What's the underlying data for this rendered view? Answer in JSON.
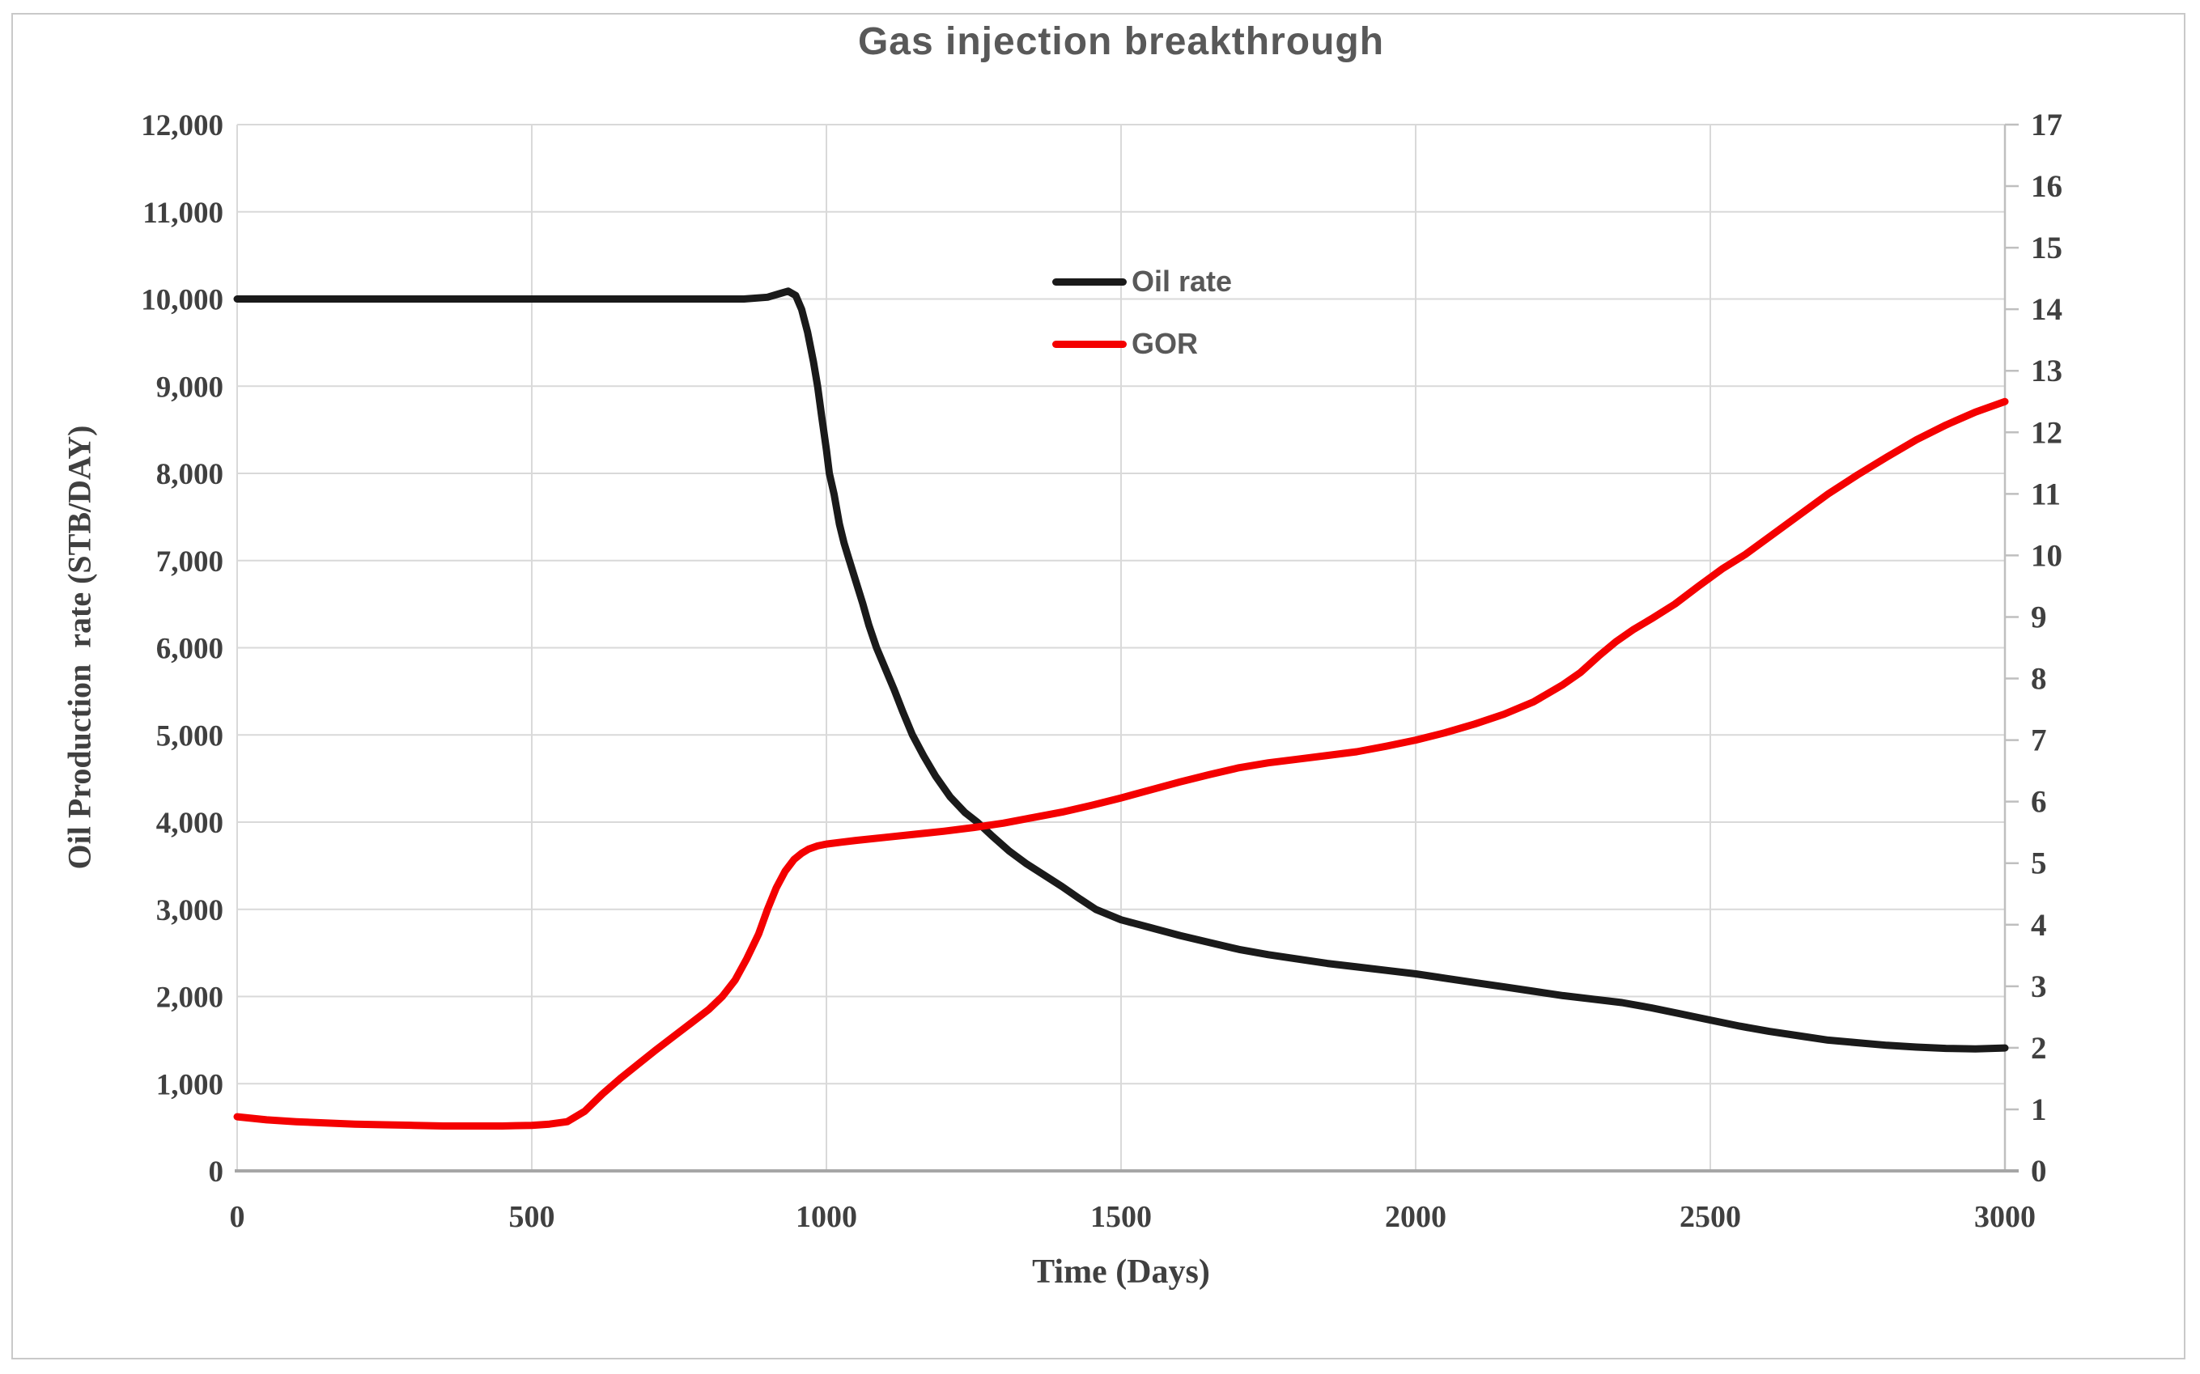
{
  "title": "Gas injection breakthrough",
  "legend": [
    {
      "label": "Oil rate",
      "color": "#1a1a1a"
    },
    {
      "label": "GOR",
      "color": "#f40000"
    }
  ],
  "colors": {
    "title_text": "#595959",
    "axis_text": "#404040",
    "gridline": "#d9d9d9",
    "axis_line": "#bfbfbf",
    "x_axis_line": "#a6a6a6",
    "figure_border": "#c9c9c9",
    "background": "#ffffff"
  },
  "chart_data": {
    "type": "line",
    "title": "Gas injection breakthrough",
    "xlabel": "Time (Days)",
    "ylabel_left": "Oil Production  rate (STB/DAY)",
    "ylabel_right": "",
    "xlim": [
      0,
      3000
    ],
    "x_ticks": [
      0,
      500,
      1000,
      1500,
      2000,
      2500,
      3000
    ],
    "left_axis": {
      "min": 0,
      "max": 12000,
      "step": 1000,
      "format": "comma"
    },
    "right_axis": {
      "min": 0,
      "max": 17,
      "step": 1
    },
    "grid": true,
    "legend_position": "inside-top-center",
    "series": [
      {
        "name": "Oil rate",
        "axis": "left",
        "color": "#1a1a1a",
        "points": [
          [
            0,
            10000
          ],
          [
            150,
            10000
          ],
          [
            300,
            10000
          ],
          [
            450,
            10000
          ],
          [
            600,
            10000
          ],
          [
            750,
            10000
          ],
          [
            860,
            10000
          ],
          [
            900,
            10020
          ],
          [
            920,
            10060
          ],
          [
            935,
            10090
          ],
          [
            948,
            10040
          ],
          [
            958,
            9880
          ],
          [
            968,
            9620
          ],
          [
            978,
            9280
          ],
          [
            985,
            9000
          ],
          [
            992,
            8650
          ],
          [
            1000,
            8270
          ],
          [
            1005,
            8000
          ],
          [
            1013,
            7760
          ],
          [
            1022,
            7420
          ],
          [
            1030,
            7200
          ],
          [
            1039,
            7000
          ],
          [
            1050,
            6760
          ],
          [
            1062,
            6500
          ],
          [
            1072,
            6260
          ],
          [
            1085,
            6000
          ],
          [
            1100,
            5760
          ],
          [
            1115,
            5520
          ],
          [
            1130,
            5260
          ],
          [
            1146,
            5000
          ],
          [
            1165,
            4760
          ],
          [
            1185,
            4530
          ],
          [
            1210,
            4290
          ],
          [
            1235,
            4110
          ],
          [
            1256,
            4000
          ],
          [
            1280,
            3850
          ],
          [
            1310,
            3670
          ],
          [
            1340,
            3520
          ],
          [
            1370,
            3390
          ],
          [
            1400,
            3260
          ],
          [
            1430,
            3120
          ],
          [
            1457,
            3000
          ],
          [
            1500,
            2880
          ],
          [
            1550,
            2790
          ],
          [
            1600,
            2700
          ],
          [
            1650,
            2620
          ],
          [
            1700,
            2540
          ],
          [
            1750,
            2480
          ],
          [
            1800,
            2430
          ],
          [
            1850,
            2380
          ],
          [
            1900,
            2340
          ],
          [
            1950,
            2300
          ],
          [
            2000,
            2260
          ],
          [
            2050,
            2210
          ],
          [
            2100,
            2160
          ],
          [
            2150,
            2110
          ],
          [
            2200,
            2060
          ],
          [
            2250,
            2010
          ],
          [
            2300,
            1970
          ],
          [
            2350,
            1930
          ],
          [
            2400,
            1870
          ],
          [
            2450,
            1800
          ],
          [
            2500,
            1730
          ],
          [
            2550,
            1660
          ],
          [
            2600,
            1600
          ],
          [
            2650,
            1550
          ],
          [
            2700,
            1500
          ],
          [
            2750,
            1470
          ],
          [
            2800,
            1440
          ],
          [
            2850,
            1420
          ],
          [
            2900,
            1405
          ],
          [
            2950,
            1400
          ],
          [
            3000,
            1410
          ]
        ]
      },
      {
        "name": "GOR",
        "axis": "right",
        "color": "#f40000",
        "points": [
          [
            0,
            0.88
          ],
          [
            50,
            0.83
          ],
          [
            100,
            0.8
          ],
          [
            150,
            0.78
          ],
          [
            200,
            0.76
          ],
          [
            250,
            0.75
          ],
          [
            300,
            0.74
          ],
          [
            350,
            0.73
          ],
          [
            400,
            0.73
          ],
          [
            450,
            0.73
          ],
          [
            500,
            0.74
          ],
          [
            530,
            0.76
          ],
          [
            560,
            0.8
          ],
          [
            590,
            0.97
          ],
          [
            620,
            1.25
          ],
          [
            650,
            1.5
          ],
          [
            680,
            1.73
          ],
          [
            710,
            1.96
          ],
          [
            740,
            2.18
          ],
          [
            770,
            2.4
          ],
          [
            800,
            2.62
          ],
          [
            823,
            2.83
          ],
          [
            845,
            3.1
          ],
          [
            865,
            3.45
          ],
          [
            885,
            3.85
          ],
          [
            900,
            4.25
          ],
          [
            915,
            4.6
          ],
          [
            930,
            4.87
          ],
          [
            945,
            5.06
          ],
          [
            958,
            5.16
          ],
          [
            970,
            5.23
          ],
          [
            985,
            5.28
          ],
          [
            1000,
            5.31
          ],
          [
            1025,
            5.34
          ],
          [
            1050,
            5.37
          ],
          [
            1100,
            5.42
          ],
          [
            1150,
            5.47
          ],
          [
            1200,
            5.52
          ],
          [
            1250,
            5.58
          ],
          [
            1300,
            5.65
          ],
          [
            1350,
            5.74
          ],
          [
            1400,
            5.83
          ],
          [
            1450,
            5.94
          ],
          [
            1500,
            6.06
          ],
          [
            1550,
            6.19
          ],
          [
            1600,
            6.32
          ],
          [
            1650,
            6.44
          ],
          [
            1700,
            6.55
          ],
          [
            1750,
            6.63
          ],
          [
            1800,
            6.69
          ],
          [
            1850,
            6.75
          ],
          [
            1900,
            6.81
          ],
          [
            1950,
            6.9
          ],
          [
            2000,
            7.0
          ],
          [
            2050,
            7.12
          ],
          [
            2100,
            7.26
          ],
          [
            2150,
            7.42
          ],
          [
            2200,
            7.62
          ],
          [
            2250,
            7.9
          ],
          [
            2280,
            8.1
          ],
          [
            2310,
            8.36
          ],
          [
            2340,
            8.6
          ],
          [
            2370,
            8.8
          ],
          [
            2400,
            8.97
          ],
          [
            2440,
            9.21
          ],
          [
            2480,
            9.5
          ],
          [
            2520,
            9.78
          ],
          [
            2560,
            10.02
          ],
          [
            2600,
            10.3
          ],
          [
            2650,
            10.65
          ],
          [
            2700,
            11.0
          ],
          [
            2750,
            11.31
          ],
          [
            2800,
            11.6
          ],
          [
            2850,
            11.88
          ],
          [
            2900,
            12.12
          ],
          [
            2950,
            12.33
          ],
          [
            3000,
            12.5
          ]
        ]
      }
    ]
  }
}
